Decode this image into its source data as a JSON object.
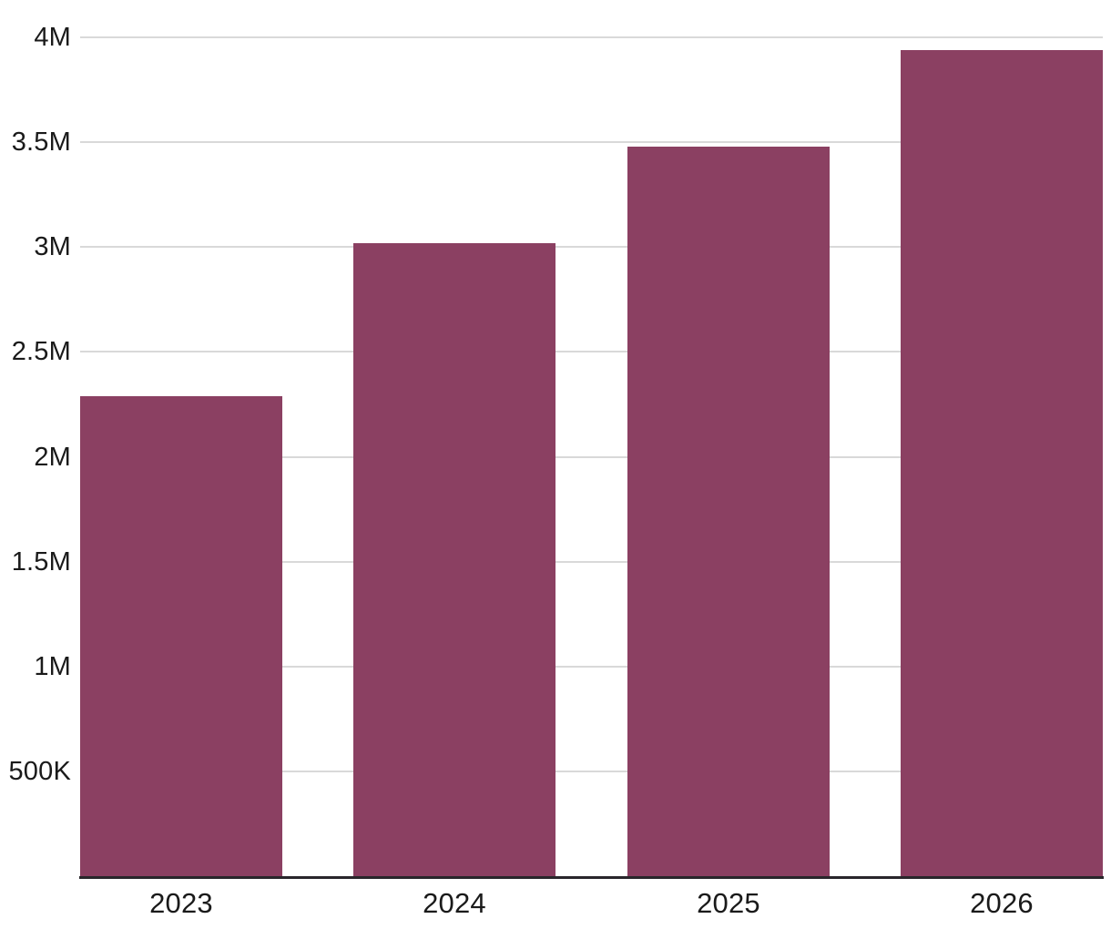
{
  "chart_data": {
    "type": "bar",
    "title": "",
    "xlabel": "",
    "ylabel": "",
    "categories": [
      "2023",
      "2024",
      "2025",
      "2026"
    ],
    "values": [
      2290000,
      3020000,
      3480000,
      3940000
    ],
    "ylim": [
      0,
      4000000
    ],
    "y_ticks": [
      {
        "value": 500000,
        "label": "500K"
      },
      {
        "value": 1000000,
        "label": "1M"
      },
      {
        "value": 1500000,
        "label": "1.5M"
      },
      {
        "value": 2000000,
        "label": "2M"
      },
      {
        "value": 2500000,
        "label": "2.5M"
      },
      {
        "value": 3000000,
        "label": "3M"
      },
      {
        "value": 3500000,
        "label": "3.5M"
      },
      {
        "value": 4000000,
        "label": "4M"
      }
    ],
    "grid": true,
    "legend": false,
    "colors": {
      "bar": "#8B4062",
      "gridline": "#D9D9D9",
      "axis_line": "#29262B",
      "text": "#1A1A1A"
    }
  }
}
